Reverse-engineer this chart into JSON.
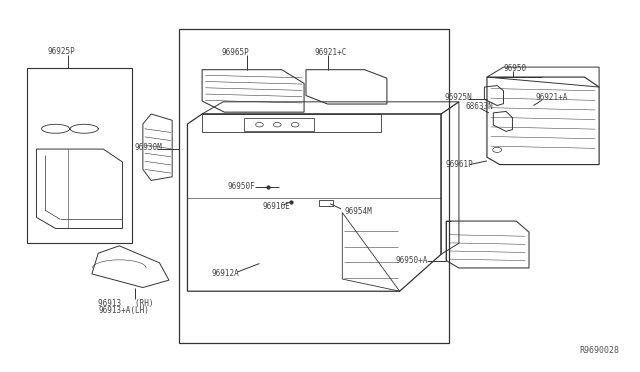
{
  "bg_color": "#ffffff",
  "line_color": "#333333",
  "text_color": "#444444",
  "fig_width": 6.4,
  "fig_height": 3.72,
  "dpi": 100,
  "watermark": "R9690028",
  "label_texts": {
    "96925P": "96925P",
    "96930M": "96930M",
    "96965P": "96965P",
    "96921C": "96921+C",
    "96950F": "96950F",
    "96916E": "96916E",
    "96954M": "96954M",
    "96912A": "96912A",
    "96913_rh": "96913   (RH)",
    "96913_lh": "96913+A(LH)",
    "96950": "96950",
    "96925N": "96925N",
    "96921A": "96921+A",
    "68633N": "68633N",
    "96961P": "96961P",
    "96950A": "96950+A"
  }
}
